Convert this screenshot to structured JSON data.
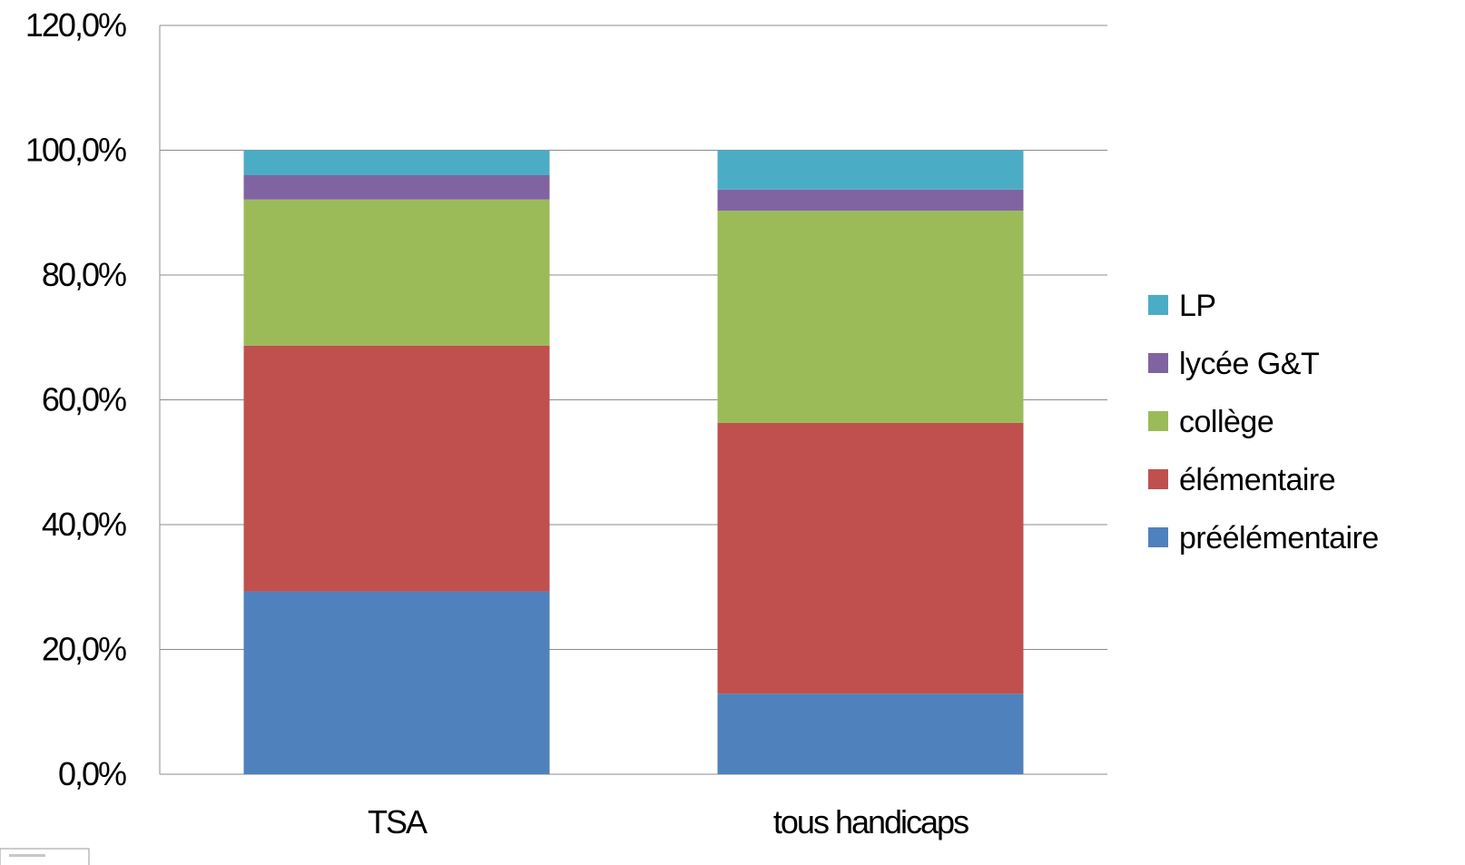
{
  "chart_data": {
    "type": "bar",
    "stacked": true,
    "title": "",
    "xlabel": "",
    "ylabel": "",
    "categories": [
      "TSA",
      "tous handicaps"
    ],
    "series": [
      {
        "name": "préélémentaire",
        "color": "#4F81BD",
        "values": [
          29.3,
          12.9
        ]
      },
      {
        "name": "élémentaire",
        "color": "#C0504D",
        "values": [
          39.4,
          43.4
        ]
      },
      {
        "name": "collège",
        "color": "#9BBB59",
        "values": [
          23.4,
          34.0
        ]
      },
      {
        "name": "lycée G&T",
        "color": "#8064A2",
        "values": [
          3.9,
          3.4
        ]
      },
      {
        "name": "LP",
        "color": "#4BACC6",
        "values": [
          4.0,
          6.3
        ]
      }
    ],
    "ylim": [
      0,
      120
    ],
    "yticks": [
      0,
      20,
      40,
      60,
      80,
      100,
      120
    ],
    "ytick_labels": [
      "0,0%",
      "20,0%",
      "40,0%",
      "60,0%",
      "80,0%",
      "100,0%",
      "120,0%"
    ],
    "grid": true,
    "legend": {
      "position": "right",
      "order": [
        "LP",
        "lycée G&T",
        "collège",
        "élémentaire",
        "préélémentaire"
      ]
    }
  }
}
